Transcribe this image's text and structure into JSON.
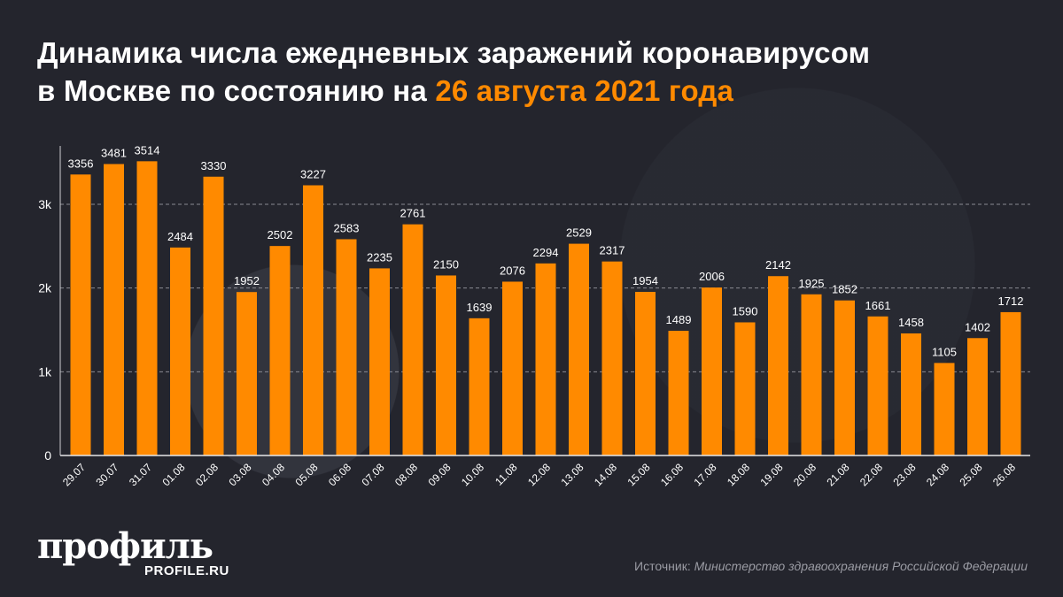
{
  "title": {
    "line1": "Динамика числа ежедневных заражений коронавирусом",
    "line2_prefix": "в Москве по состоянию на ",
    "line2_highlight": "26 августа 2021 года"
  },
  "colors": {
    "bar": "#ff8a00",
    "background": "#24252d",
    "highlight": "#ff8a00"
  },
  "chart_data": {
    "type": "bar",
    "title": "Динамика числа ежедневных заражений коронавирусом в Москве по состоянию на 26 августа 2021 года",
    "categories": [
      "29.07",
      "30.07",
      "31.07",
      "01.08",
      "02.08",
      "03.08",
      "04.08",
      "05.08",
      "06.08",
      "07.08",
      "08.08",
      "09.08",
      "10.08",
      "11.08",
      "12.08",
      "13.08",
      "14.08",
      "15.08",
      "16.08",
      "17.08",
      "18.08",
      "19.08",
      "20.08",
      "21.08",
      "22.08",
      "23.08",
      "24.08",
      "25.08",
      "26.08"
    ],
    "values": [
      3356,
      3481,
      3514,
      2484,
      3330,
      1952,
      2502,
      3227,
      2583,
      2235,
      2761,
      2150,
      1639,
      2076,
      2294,
      2529,
      2317,
      1954,
      1489,
      2006,
      1590,
      2142,
      1925,
      1852,
      1661,
      1458,
      1105,
      1402,
      1712
    ],
    "yticks": [
      {
        "value": 0,
        "label": "0"
      },
      {
        "value": 1000,
        "label": "1k"
      },
      {
        "value": 2000,
        "label": "2k"
      },
      {
        "value": 3000,
        "label": "3k"
      }
    ],
    "ylim": [
      0,
      3600
    ],
    "grid": true,
    "data_labels": true
  },
  "logo": {
    "text": "профиль",
    "sub": "PROFILE.RU"
  },
  "source": {
    "label": "Источник: ",
    "text": "Министерство здравоохранения Российской Федерации"
  }
}
